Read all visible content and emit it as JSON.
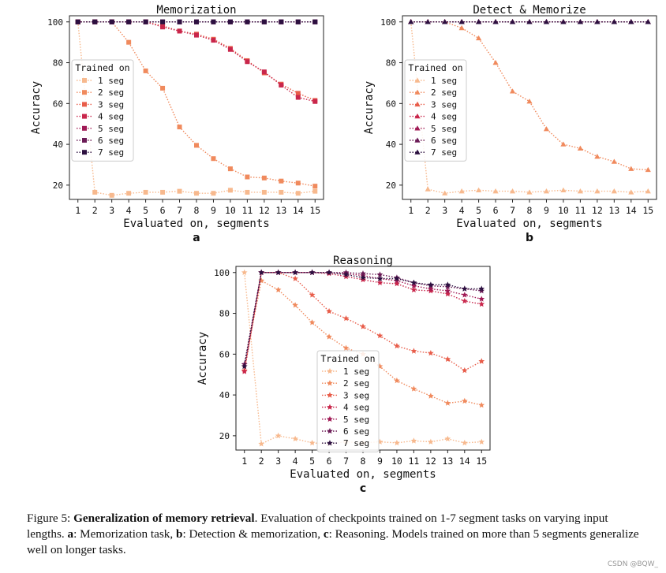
{
  "chart_data": [
    {
      "type": "line",
      "panel_label": "a",
      "title": "Memorization",
      "xlabel": "Evaluated on, segments",
      "ylabel": "Accuracy",
      "x": [
        1,
        2,
        3,
        4,
        5,
        6,
        7,
        8,
        9,
        10,
        11,
        12,
        13,
        14,
        15
      ],
      "xlim": [
        0.5,
        15.5
      ],
      "ylim": [
        13,
        103
      ],
      "yticks": [
        20,
        40,
        60,
        80,
        100
      ],
      "grid": false,
      "marker": "square",
      "legend_title": "Trained on",
      "legend_position": "left",
      "series": [
        {
          "name": "1 seg",
          "color": "#f7b98e",
          "values": [
            100,
            16.5,
            15,
            16,
            16.5,
            16.5,
            17,
            16,
            16,
            17.5,
            16.5,
            16.5,
            16.5,
            16,
            17
          ]
        },
        {
          "name": "2 seg",
          "color": "#f08a5d",
          "values": [
            100,
            100,
            100,
            90,
            76,
            67.5,
            48.5,
            39.5,
            33,
            28,
            24,
            23.5,
            22,
            21,
            19.5
          ]
        },
        {
          "name": "3 seg",
          "color": "#e85d4a",
          "values": [
            100,
            100,
            100,
            100,
            100,
            98,
            95.5,
            94,
            91.5,
            87,
            81,
            75,
            69.5,
            65,
            61.5
          ]
        },
        {
          "name": "4 seg",
          "color": "#c9264b",
          "values": [
            100,
            100,
            100,
            100,
            100,
            97.5,
            95.5,
            93.5,
            91,
            86.5,
            80.5,
            75.5,
            69,
            63,
            61
          ]
        },
        {
          "name": "5 seg",
          "color": "#a01a55",
          "values": [
            100,
            100,
            100,
            100,
            100,
            100,
            100,
            100,
            100,
            100,
            100,
            100,
            100,
            100,
            100
          ]
        },
        {
          "name": "6 seg",
          "color": "#6b1b56",
          "values": [
            100,
            100,
            100,
            100,
            100,
            100,
            100,
            100,
            100,
            100,
            100,
            100,
            100,
            100,
            100
          ]
        },
        {
          "name": "7 seg",
          "color": "#2c1040",
          "values": [
            100,
            100,
            100,
            100,
            100,
            100,
            100,
            100,
            100,
            100,
            100,
            100,
            100,
            100,
            100
          ]
        }
      ]
    },
    {
      "type": "line",
      "panel_label": "b",
      "title": "Detect & Memorize",
      "xlabel": "Evaluated on, segments",
      "ylabel": "Accuracy",
      "x": [
        1,
        2,
        3,
        4,
        5,
        6,
        7,
        8,
        9,
        10,
        11,
        12,
        13,
        14,
        15
      ],
      "xlim": [
        0.5,
        15.5
      ],
      "ylim": [
        13,
        103
      ],
      "yticks": [
        20,
        40,
        60,
        80,
        100
      ],
      "grid": false,
      "marker": "triangle",
      "legend_title": "Trained on",
      "legend_position": "left",
      "series": [
        {
          "name": "1 seg",
          "color": "#f7b98e",
          "values": [
            100,
            18,
            16,
            17,
            17.5,
            17,
            17,
            16.5,
            17,
            17.5,
            17,
            17,
            17,
            16.5,
            17
          ]
        },
        {
          "name": "2 seg",
          "color": "#f08a5d",
          "values": [
            100,
            100,
            100,
            97,
            92,
            80,
            66,
            61,
            47.5,
            40,
            38,
            34,
            31.5,
            28,
            27.5
          ]
        },
        {
          "name": "3 seg",
          "color": "#e85d4a",
          "values": [
            100,
            100,
            100,
            100,
            100,
            100,
            100,
            100,
            100,
            100,
            100,
            100,
            100,
            100,
            100
          ]
        },
        {
          "name": "4 seg",
          "color": "#c9264b",
          "values": [
            100,
            100,
            100,
            100,
            100,
            100,
            100,
            100,
            100,
            100,
            100,
            100,
            100,
            100,
            100
          ]
        },
        {
          "name": "5 seg",
          "color": "#a01a55",
          "values": [
            100,
            100,
            100,
            100,
            100,
            100,
            100,
            100,
            100,
            100,
            100,
            100,
            100,
            100,
            100
          ]
        },
        {
          "name": "6 seg",
          "color": "#6b1b56",
          "values": [
            100,
            100,
            100,
            100,
            100,
            100,
            100,
            100,
            100,
            100,
            100,
            100,
            100,
            100,
            100
          ]
        },
        {
          "name": "7 seg",
          "color": "#2c1040",
          "values": [
            100,
            100,
            100,
            100,
            100,
            100,
            100,
            100,
            100,
            100,
            100,
            100,
            100,
            100,
            100
          ]
        }
      ]
    },
    {
      "type": "line",
      "panel_label": "c",
      "title": "Reasoning",
      "xlabel": "Evaluated on, segments",
      "ylabel": "Accuracy",
      "x": [
        1,
        2,
        3,
        4,
        5,
        6,
        7,
        8,
        9,
        10,
        11,
        12,
        13,
        14,
        15
      ],
      "xlim": [
        0.5,
        15.5
      ],
      "ylim": [
        13,
        103
      ],
      "yticks": [
        20,
        40,
        60,
        80,
        100
      ],
      "grid": false,
      "marker": "star",
      "legend_title": "Trained on",
      "legend_position": "bottom-center",
      "series": [
        {
          "name": "1 seg",
          "color": "#f7b98e",
          "values": [
            100,
            16,
            20,
            18.5,
            16.5,
            16,
            17,
            16.5,
            17,
            16.5,
            17.5,
            17,
            18.5,
            16.5,
            17
          ]
        },
        {
          "name": "2 seg",
          "color": "#f08a5d",
          "values": [
            54,
            96,
            91.5,
            84,
            75.5,
            68.5,
            63,
            60,
            54,
            47,
            43,
            39.5,
            36,
            37,
            35
          ]
        },
        {
          "name": "3 seg",
          "color": "#e85d4a",
          "values": [
            52,
            100,
            100,
            97,
            89,
            81,
            77.5,
            73.5,
            69,
            64,
            61.5,
            60.5,
            57.5,
            52,
            56.5
          ]
        },
        {
          "name": "4 seg",
          "color": "#c9264b",
          "values": [
            51.5,
            100,
            100,
            100,
            100,
            99.5,
            98,
            96.5,
            95,
            94.5,
            91.5,
            91,
            89.5,
            86,
            84.5
          ]
        },
        {
          "name": "5 seg",
          "color": "#a01a55",
          "values": [
            55,
            100,
            100,
            100,
            100,
            100,
            99.5,
            98.5,
            97,
            96,
            93.5,
            92,
            91,
            89,
            87
          ]
        },
        {
          "name": "6 seg",
          "color": "#6b1b56",
          "values": [
            55,
            100,
            100,
            100,
            100,
            100,
            100,
            99.5,
            99,
            97.5,
            95,
            93.5,
            93,
            92,
            91
          ]
        },
        {
          "name": "7 seg",
          "color": "#2c1040",
          "values": [
            54,
            100,
            100,
            100,
            100,
            100,
            99,
            97.5,
            97,
            97,
            95,
            94,
            94,
            92,
            92
          ]
        }
      ]
    }
  ],
  "caption": {
    "prefix": "Figure 5: ",
    "bold": "Generalization of memory retrieval",
    "rest_1": ". Evaluation of checkpoints trained on 1-7 segment tasks on varying input lengths. ",
    "a_label": "a",
    "a_text": ": Memorization task, ",
    "b_label": "b",
    "b_text": ": Detection & memorization, ",
    "c_label": "c",
    "c_text": ": Reasoning. Models trained on more than 5 segments generalize well on longer tasks."
  },
  "watermark": "CSDN @BQW_"
}
